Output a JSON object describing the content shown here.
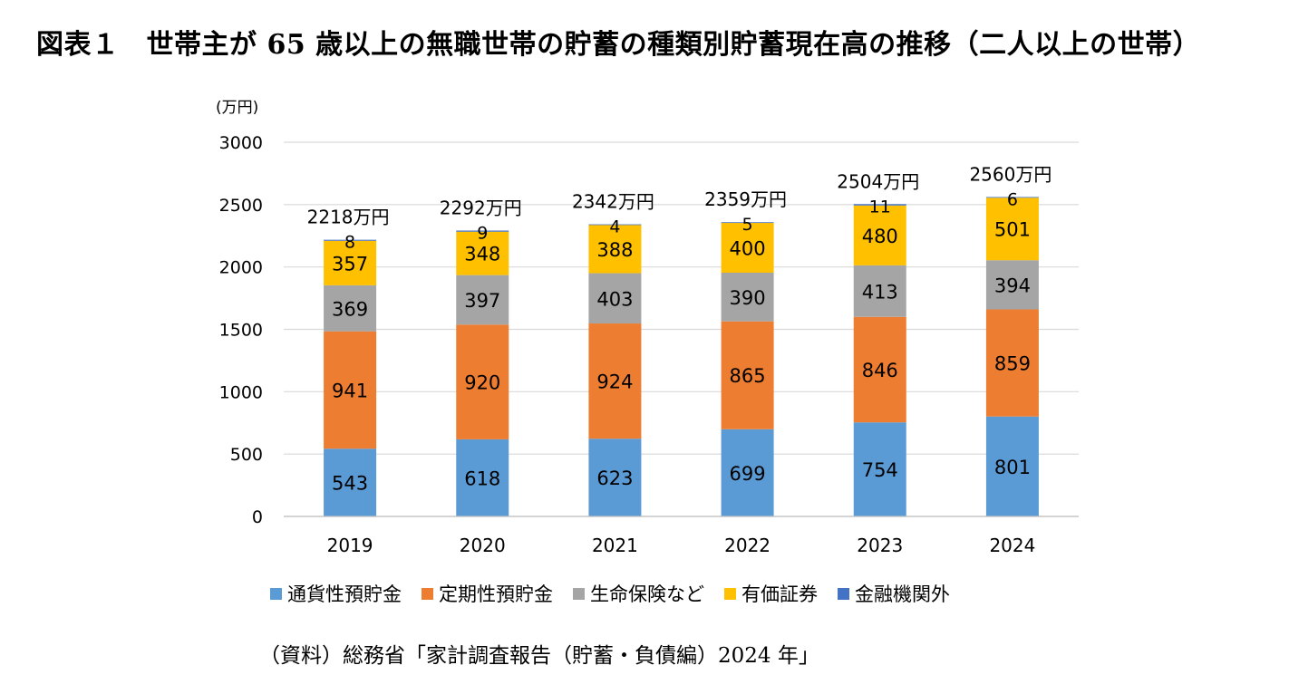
{
  "title": {
    "figure_no": "図表１",
    "text": "世帯主が 65 歳以上の無職世帯の貯蓄の種類別貯蓄現在高の推移（二人以上の世帯）"
  },
  "source": "（資料）総務省「家計調査報告（貯蓄・負債編）2024 年」",
  "chart_data": {
    "type": "bar",
    "stacked": true,
    "unit_label": "(万円)",
    "categories": [
      "2019",
      "2020",
      "2021",
      "2022",
      "2023",
      "2024"
    ],
    "series": [
      {
        "name": "通貨性預貯金",
        "color": "#5B9BD5",
        "values": [
          543,
          618,
          623,
          699,
          754,
          801
        ]
      },
      {
        "name": "定期性預貯金",
        "color": "#ED7D31",
        "values": [
          941,
          920,
          924,
          865,
          846,
          859
        ]
      },
      {
        "name": "生命保険など",
        "color": "#A5A5A5",
        "values": [
          369,
          397,
          403,
          390,
          413,
          394
        ]
      },
      {
        "name": "有価証券",
        "color": "#FFC000",
        "values": [
          357,
          348,
          388,
          400,
          480,
          501
        ]
      },
      {
        "name": "金融機関外",
        "color": "#4472C4",
        "values": [
          8,
          9,
          4,
          5,
          11,
          6
        ]
      }
    ],
    "totals": [
      "2218万円",
      "2292万円",
      "2342万円",
      "2359万円",
      "2504万円",
      "2560万円"
    ],
    "ylim": [
      0,
      3000
    ],
    "yticks": [
      "0",
      "500",
      "1000",
      "1500",
      "2000",
      "2500",
      "3000"
    ],
    "grid": true,
    "legend_position": "bottom"
  }
}
